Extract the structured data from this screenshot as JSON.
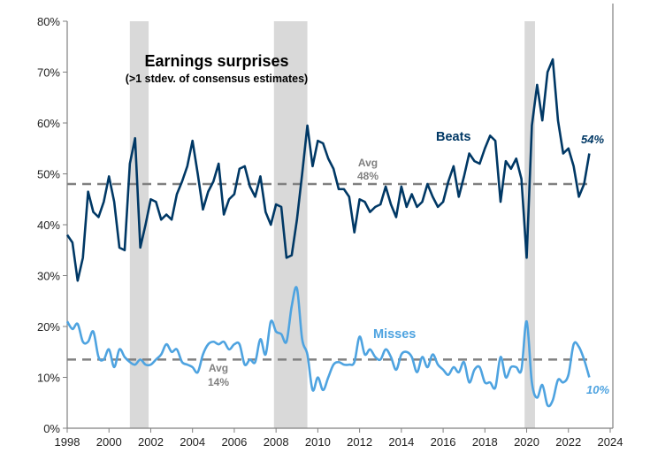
{
  "chart_data": {
    "type": "line",
    "title": "Earnings surprises",
    "subtitle": "(>1 stdev. of consensus estimates)",
    "xlabel": "",
    "ylabel": "",
    "xlim": [
      1998,
      2024
    ],
    "ylim": [
      0,
      80
    ],
    "x_ticks": [
      "1998",
      "2000",
      "2002",
      "2004",
      "2006",
      "2008",
      "2010",
      "2012",
      "2014",
      "2016",
      "2018",
      "2020",
      "2022",
      "2024"
    ],
    "y_ticks": [
      "0%",
      "10%",
      "20%",
      "30%",
      "40%",
      "50%",
      "60%",
      "70%",
      "80%"
    ],
    "x_start": 1998.0,
    "x_step": 0.25,
    "recessions": [
      [
        2001.0,
        2001.9
      ],
      [
        2007.9,
        2009.5
      ],
      [
        2019.9,
        2020.4
      ]
    ],
    "colors": {
      "beats": "#003865",
      "misses": "#4ea3e0",
      "avg": "#808080",
      "recession": "#d9d9d9"
    },
    "series": [
      {
        "name": "Beats",
        "label": "Beats",
        "last_label": "54%",
        "avg": 48,
        "avg_label": "Avg",
        "avg_value_label": "48%",
        "values": [
          38,
          36.5,
          29,
          33.5,
          46.5,
          42.5,
          41.5,
          44.5,
          49.5,
          44.5,
          35.5,
          35,
          52,
          57,
          35.5,
          40,
          45,
          44.5,
          41,
          42,
          41,
          46,
          48.5,
          51.5,
          56.5,
          50,
          43,
          46.5,
          48.5,
          52,
          42,
          45,
          46,
          51,
          51.5,
          47.5,
          45.5,
          49.5,
          42.5,
          40,
          44,
          43.5,
          33.5,
          34,
          41,
          50,
          59.5,
          51.5,
          56.5,
          56,
          53,
          51,
          47,
          47,
          45.5,
          38.5,
          45,
          44.5,
          42.5,
          43.5,
          44,
          47.5,
          44,
          41.5,
          47.5,
          43.5,
          46,
          43.5,
          44.5,
          48,
          45.5,
          43.5,
          44.5,
          48.5,
          51.5,
          45.5,
          49.5,
          54,
          52.5,
          52,
          55,
          57.5,
          56.5,
          44.5,
          52.5,
          51,
          53,
          49,
          33.5,
          59.5,
          67.5,
          60.5,
          70,
          72.5,
          60.5,
          54,
          55,
          51.5,
          45.5,
          48,
          54
        ]
      },
      {
        "name": "Misses",
        "label": "Misses",
        "last_label": "10%",
        "avg": 13.5,
        "avg_label": "Avg",
        "avg_value_label": "14%",
        "values": [
          21,
          19.5,
          20.5,
          17,
          17,
          19,
          14,
          13.5,
          15.5,
          12,
          15.5,
          14,
          13,
          12.5,
          13.5,
          12.5,
          12.5,
          13.5,
          14.5,
          16.5,
          15,
          15.5,
          13,
          12.5,
          12,
          11,
          14.5,
          16.5,
          17,
          16.5,
          17,
          15.5,
          16.5,
          16.5,
          12.5,
          13.5,
          13,
          17.5,
          14.5,
          21,
          19,
          18.5,
          17,
          24,
          27.5,
          17.5,
          14.5,
          7.5,
          10,
          7.5,
          10,
          12.5,
          13,
          12.5,
          12.5,
          13,
          18,
          14.5,
          15.5,
          14,
          13.5,
          15.5,
          14,
          11.5,
          14.5,
          15,
          14,
          11,
          14,
          12,
          14.5,
          12.5,
          11.5,
          10.5,
          12,
          11,
          13,
          9,
          11.5,
          12,
          9,
          9,
          8,
          14,
          10,
          12,
          12,
          11.5,
          21,
          9,
          6,
          8.5,
          4.5,
          5.5,
          9.5,
          9,
          10.5,
          16.5,
          16,
          13.5,
          10
        ]
      }
    ]
  }
}
